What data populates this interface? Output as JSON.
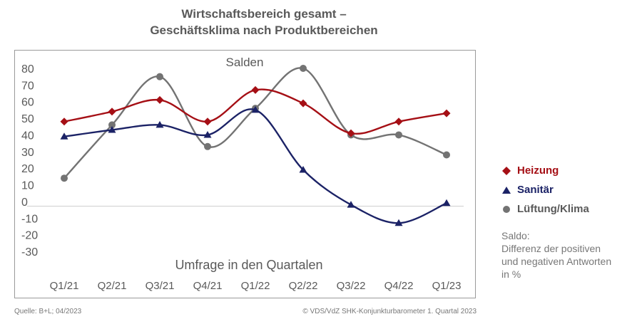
{
  "title_line1": "Wirtschaftsbereich gesamt –",
  "title_line2": "Geschäftsklima nach Produktbereichen",
  "inner_title": "Salden",
  "xaxis_title": "Umfrage in den Quartalen",
  "note_lines": [
    "Saldo:",
    "Differenz der positiven",
    "und negativen Antworten",
    "in %"
  ],
  "source": "Quelle: B+L; 04/2023",
  "copyright": "© VDS/VdZ SHK-Konjunkturbarometer 1. Quartal 2023",
  "chart_data": {
    "type": "line",
    "categories": [
      "Q1/21",
      "Q2/21",
      "Q3/21",
      "Q4/21",
      "Q1/22",
      "Q2/22",
      "Q3/22",
      "Q4/22",
      "Q1/23"
    ],
    "yticks": [
      "80",
      "70",
      "60",
      "50",
      "40",
      "30",
      "20",
      "10",
      "0",
      "-10",
      "-20",
      "-30"
    ],
    "ylim": [
      -30,
      80
    ],
    "title": "Salden",
    "xlabel": "Umfrage in den Quartalen",
    "ylabel": "",
    "legend_position": "right",
    "series": [
      {
        "name": "Heizung",
        "color": "#A50F15",
        "marker": "diamond",
        "values": [
          48,
          54,
          61,
          48,
          67,
          59,
          41,
          48,
          53
        ]
      },
      {
        "name": "Sanitär",
        "color": "#1B2266",
        "marker": "triangle",
        "values": [
          39,
          43,
          46,
          40,
          55,
          19,
          -2,
          -13,
          -1
        ]
      },
      {
        "name": "Lüftung/Klima",
        "color": "#737373",
        "marker": "circle",
        "values": [
          14,
          46,
          75,
          33,
          56,
          80,
          40,
          40,
          28
        ]
      }
    ]
  }
}
